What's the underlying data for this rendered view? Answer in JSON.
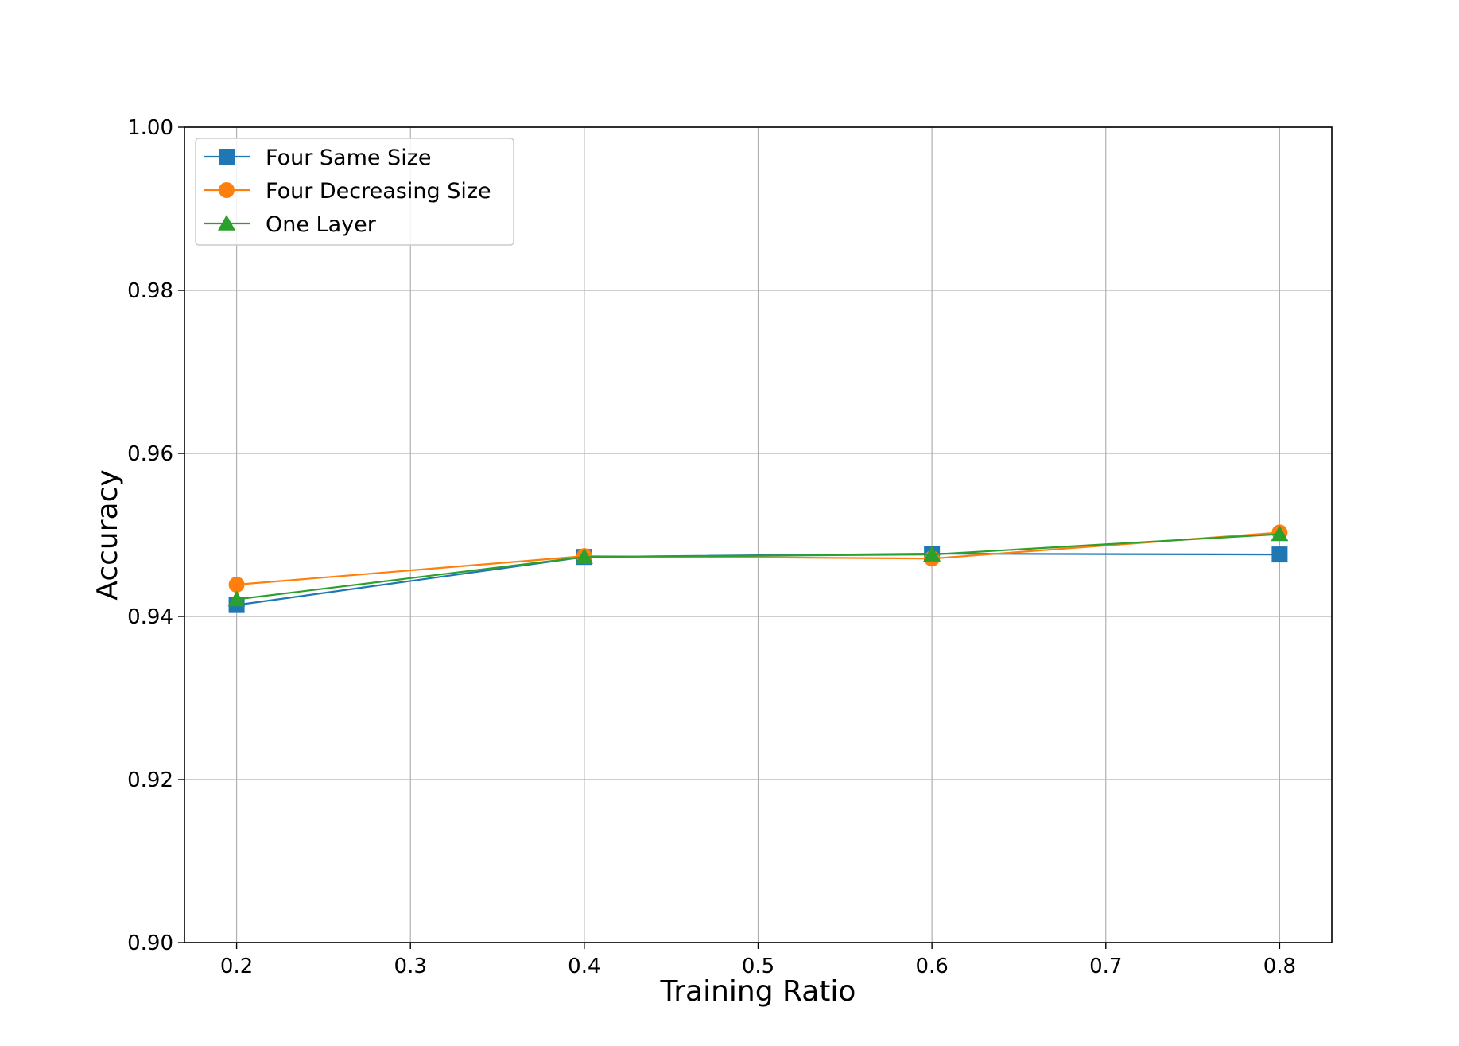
{
  "chart_data": {
    "type": "line",
    "xlabel": "Training Ratio",
    "ylabel": "Accuracy",
    "xlim": [
      0.17,
      0.83
    ],
    "ylim": [
      0.9,
      1.0
    ],
    "x_ticks": [
      "0.2",
      "0.3",
      "0.4",
      "0.5",
      "0.6",
      "0.7",
      "0.8"
    ],
    "y_ticks": [
      "0.90",
      "0.92",
      "0.94",
      "0.96",
      "0.98",
      "1.00"
    ],
    "grid": true,
    "legend_position": "top-left",
    "x": [
      0.2,
      0.4,
      0.6,
      0.8
    ],
    "series": [
      {
        "name": "Four Same Size",
        "values": [
          0.9414,
          0.9473,
          0.9477,
          0.9476
        ],
        "color": "#1f77b4",
        "marker": "square"
      },
      {
        "name": "Four Decreasing Size",
        "values": [
          0.9439,
          0.9474,
          0.9471,
          0.9503
        ],
        "color": "#ff7f0e",
        "marker": "circle"
      },
      {
        "name": "One Layer",
        "values": [
          0.9421,
          0.9473,
          0.9476,
          0.9501
        ],
        "color": "#2ca02c",
        "marker": "triangle"
      }
    ]
  }
}
